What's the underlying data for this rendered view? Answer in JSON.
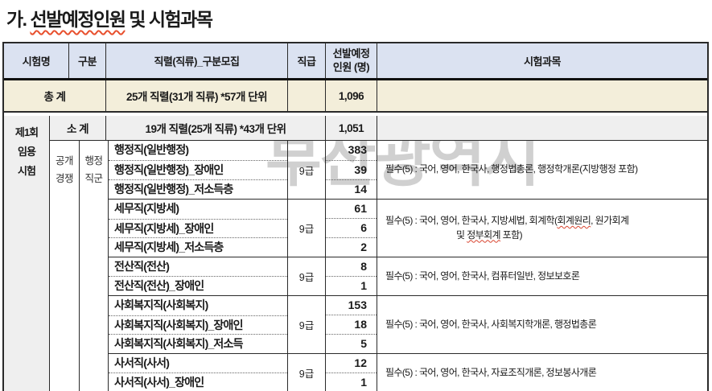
{
  "title": {
    "prefix": "가. ",
    "underlined": "선발예정인원",
    "suffix": " 및 시험과목"
  },
  "watermark": "부산광역시",
  "header": {
    "exam_name": "시험명",
    "category": "구분",
    "series": "직렬(직류)_구분모집",
    "rank": "직급",
    "count_line1": "선발예정",
    "count_line2": "인원 (명)",
    "subjects": "시험과목"
  },
  "total_row": {
    "label": "총 계",
    "series": "25개 직렬(31개 직류) *57개 단위",
    "count": "1,096"
  },
  "exam_round": {
    "line1": "제1회",
    "line2": "임용",
    "line3": "시험"
  },
  "subtotal_row": {
    "label": "소 계",
    "series": "19개 직렬(25개 직류) *43개 단위",
    "count": "1,051"
  },
  "category": {
    "col1_line1": "공개",
    "col1_line2": "경쟁",
    "col2_line1": "행정",
    "col2_line2": "직군"
  },
  "groups": [
    {
      "rank": "9급",
      "rows": [
        {
          "name": "행정직(일반행정)",
          "count": "383"
        },
        {
          "name": "행정직(일반행정)_장애인",
          "count": "39"
        },
        {
          "name": "행정직(일반행정)_저소득층",
          "count": "14"
        }
      ],
      "subject_lines": [
        [
          {
            "t": "필수(5) : 국어, 영어, 한국사, 행정법총론, 행정학개론(지방행정 포함)"
          }
        ]
      ]
    },
    {
      "rank": "9급",
      "rows": [
        {
          "name": "세무직(지방세)",
          "count": "61"
        },
        {
          "name": "세무직(지방세)_장애인",
          "count": "6"
        },
        {
          "name": "세무직(지방세)_저소득층",
          "count": "2"
        }
      ],
      "subject_lines": [
        [
          {
            "t": "필수(5) : 국어, 영어, 한국사, 지방세법, 회계학("
          },
          {
            "t": "회계원리",
            "wavy": true
          },
          {
            "t": ", 원가회계"
          }
        ],
        [
          {
            "t": "및 "
          },
          {
            "t": "정부회계",
            "wavy": true
          },
          {
            "t": " 포함)"
          }
        ]
      ]
    },
    {
      "rank": "9급",
      "rows": [
        {
          "name": "전산직(전산)",
          "count": "8"
        },
        {
          "name": "전산직(전산)_장애인",
          "count": "1"
        }
      ],
      "subject_lines": [
        [
          {
            "t": "필수(5) : 국어, 영어, 한국사, 컴퓨터일반, 정보보호론"
          }
        ]
      ]
    },
    {
      "rank": "9급",
      "rows": [
        {
          "name": "사회복지직(사회복지)",
          "count": "153"
        },
        {
          "name": "사회복지직(사회복지)_장애인",
          "count": "18"
        },
        {
          "name": "사회복지직(사회복지)_저소득",
          "count": "5"
        }
      ],
      "subject_lines": [
        [
          {
            "t": "필수(5) : 국어, 영어, 한국사, 사회복지학개론, 행정법총론"
          }
        ]
      ]
    },
    {
      "rank": "9급",
      "rows": [
        {
          "name": "사서직(사서)",
          "count": "12"
        },
        {
          "name": "사서직(사서)_장애인",
          "count": "1"
        }
      ],
      "subject_lines": [
        [
          {
            "t": "필수(5) : 국어, 영어, 한국사, 자료조직개론, 정보봉사개론"
          }
        ]
      ]
    }
  ],
  "colors": {
    "header_bg": "#dbe2f1",
    "total_bg": "#f3eeda",
    "gray_bg": "#efefef",
    "border": "#2a2a2a",
    "squiggle": "#e8502e",
    "watermark": "#d0d0d0"
  }
}
